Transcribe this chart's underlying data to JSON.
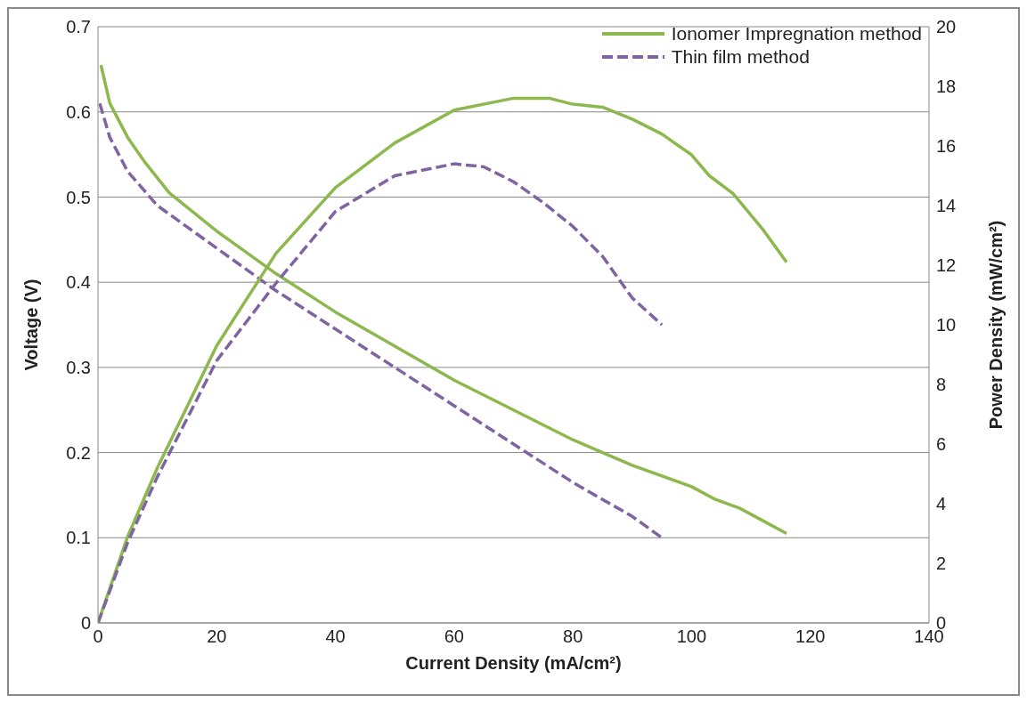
{
  "chart_data": {
    "type": "line",
    "xlabel": "Current Density (mA/cm²)",
    "ylabel": "Voltage (V)",
    "y2label": "Power Density (mW/cm²)",
    "xlim": [
      0,
      140
    ],
    "xticks": [
      0,
      20,
      40,
      60,
      80,
      100,
      120,
      140
    ],
    "ylim": [
      0,
      0.7
    ],
    "yticks": [
      0,
      0.1,
      0.2,
      0.3,
      0.4,
      0.5,
      0.6,
      0.7
    ],
    "y2lim": [
      0,
      20
    ],
    "y2ticks": [
      0,
      2,
      4,
      6,
      8,
      10,
      12,
      14,
      16,
      18,
      20
    ],
    "grid": "y",
    "legend": "top right",
    "marker": "none",
    "series": [
      {
        "name": "Ionomer Impregnation method",
        "color": "#8cb84e",
        "line_style": "solid",
        "x": [
          0.5,
          2,
          5,
          8,
          12,
          20,
          30,
          40,
          50,
          60,
          70,
          80,
          85,
          90,
          100,
          104,
          108,
          112,
          116
        ],
        "values": [
          0.655,
          0.61,
          0.57,
          0.54,
          0.505,
          0.46,
          0.41,
          0.365,
          0.325,
          0.285,
          0.25,
          0.215,
          0.2,
          0.185,
          0.16,
          0.145,
          0.135,
          0.12,
          0.105
        ]
      },
      {
        "name": "Thin film method",
        "color": "#8064a2",
        "line_style": "dashed",
        "x": [
          0.3,
          2,
          5,
          10,
          20,
          30,
          40,
          50,
          60,
          70,
          80,
          90,
          95
        ],
        "values": [
          0.61,
          0.57,
          0.53,
          0.49,
          0.44,
          0.39,
          0.345,
          0.3,
          0.255,
          0.21,
          0.165,
          0.125,
          0.1
        ]
      },
      {
        "color": "#8cb84e",
        "line_style": "solid",
        "axis": "y2",
        "x": [
          0,
          5,
          10,
          20,
          30,
          40,
          50,
          60,
          70,
          76,
          80,
          85,
          90,
          95,
          100,
          103,
          107,
          112,
          116
        ],
        "values": [
          0,
          2.9,
          5.2,
          9.3,
          12.4,
          14.6,
          16.1,
          17.2,
          17.6,
          17.6,
          17.4,
          17.3,
          16.9,
          16.4,
          15.7,
          15,
          14.4,
          13.2,
          12.1
        ]
      },
      {
        "color": "#8064a2",
        "line_style": "dashed",
        "axis": "y2",
        "x": [
          0,
          5,
          10,
          20,
          30,
          40,
          50,
          60,
          65,
          70,
          75,
          80,
          85,
          90,
          95
        ],
        "values": [
          0,
          2.7,
          4.9,
          8.8,
          11.4,
          13.8,
          15,
          15.4,
          15.3,
          14.8,
          14.1,
          13.3,
          12.3,
          10.9,
          10
        ]
      }
    ]
  }
}
